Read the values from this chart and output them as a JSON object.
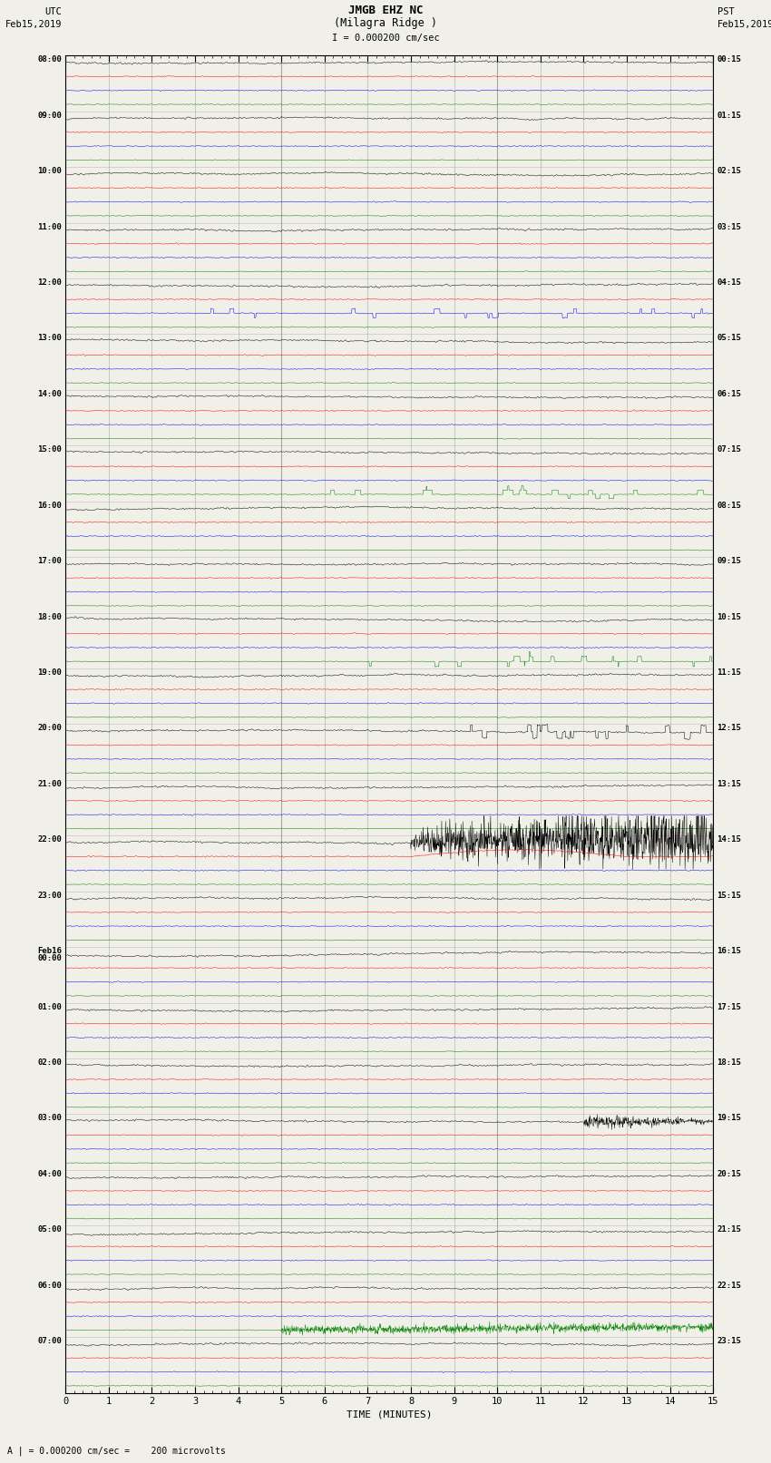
{
  "title_line1": "JMGB EHZ NC",
  "title_line2": "(Milagra Ridge )",
  "scale_label": "I = 0.000200 cm/sec",
  "left_label_top": "UTC",
  "left_label_date": "Feb15,2019",
  "right_label_top": "PST",
  "right_label_date": "Feb15,2019",
  "bottom_label": "TIME (MINUTES)",
  "bottom_note": "A | = 0.000200 cm/sec =    200 microvolts",
  "background_color": "#f0f0e8",
  "trace_colors": [
    "black",
    "red",
    "blue",
    "green"
  ],
  "utc_labels": [
    "08:00",
    "09:00",
    "10:00",
    "11:00",
    "12:00",
    "13:00",
    "14:00",
    "15:00",
    "16:00",
    "17:00",
    "18:00",
    "19:00",
    "20:00",
    "21:00",
    "22:00",
    "23:00",
    "Feb16\n00:00",
    "01:00",
    "02:00",
    "03:00",
    "04:00",
    "05:00",
    "06:00",
    "07:00"
  ],
  "pst_labels": [
    "00:15",
    "01:15",
    "02:15",
    "03:15",
    "04:15",
    "05:15",
    "06:15",
    "07:15",
    "08:15",
    "09:15",
    "10:15",
    "11:15",
    "12:15",
    "13:15",
    "14:15",
    "15:15",
    "16:15",
    "17:15",
    "18:15",
    "19:15",
    "20:15",
    "21:15",
    "22:15",
    "23:15"
  ],
  "n_rows": 24,
  "n_traces_per_row": 4,
  "time_minutes": 15,
  "fig_width": 8.5,
  "fig_height": 16.13,
  "dpi": 100,
  "x_ticks": [
    0,
    1,
    2,
    3,
    4,
    5,
    6,
    7,
    8,
    9,
    10,
    11,
    12,
    13,
    14,
    15
  ]
}
